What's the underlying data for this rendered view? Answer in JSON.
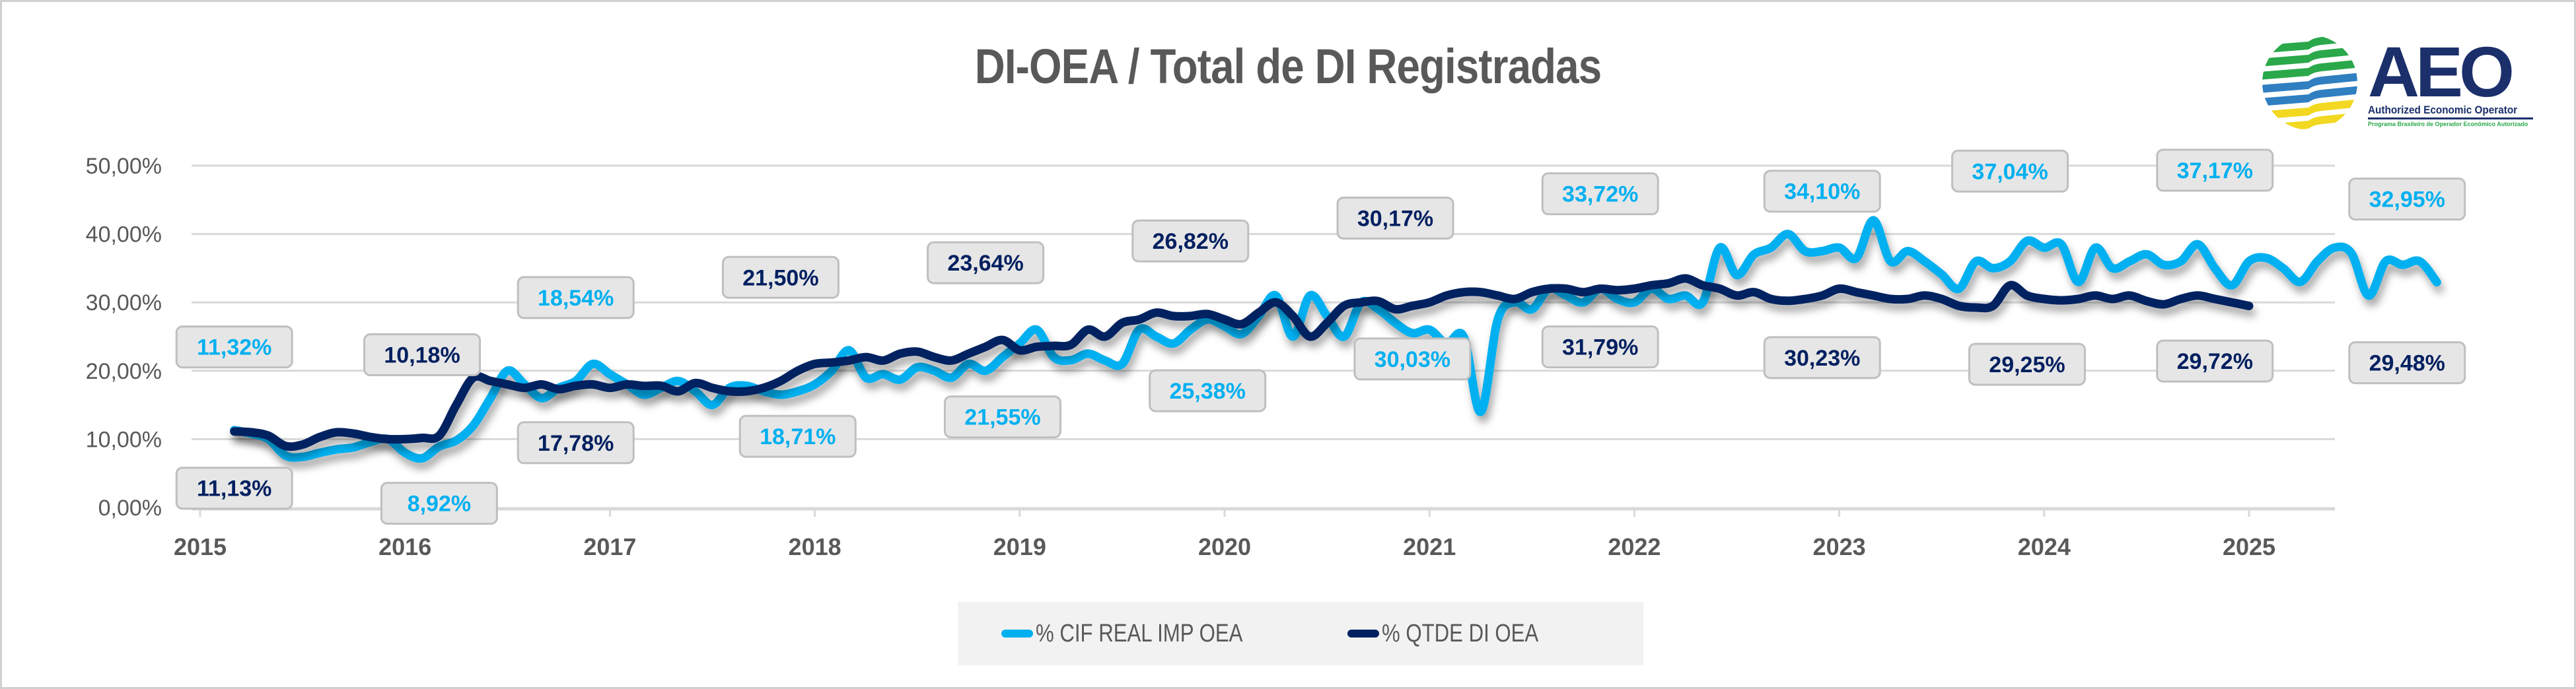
{
  "title": "DI-OEA / Total de DI Registradas",
  "logo": {
    "main_text": "AEO",
    "subtitle": "Authorized Economic Operator",
    "tagline": "Programa Brasileiro de Operador Econômico Autorizado",
    "stripe_colors": [
      "#2aa84a",
      "#2aa84a",
      "#2aa84a",
      "#2f7fc1",
      "#2f7fc1",
      "#f2d820",
      "#f2d820"
    ]
  },
  "colors": {
    "cif": "#00b0f0",
    "qtde": "#002060",
    "grid": "#d9d9d9",
    "label_bg": "#e7e6e6",
    "label_border": "#bfbfbf",
    "axis_text": "#595959"
  },
  "chart_data": {
    "type": "line",
    "title": "DI-OEA / Total de DI Registradas",
    "xlabel": "",
    "ylabel": "",
    "ylim": [
      0,
      50
    ],
    "y_ticks": [
      "0,00%",
      "10,00%",
      "20,00%",
      "30,00%",
      "40,00%",
      "50,00%"
    ],
    "y_tick_values": [
      0,
      10,
      20,
      30,
      40,
      50
    ],
    "x_ticks": [
      "2015",
      "2016",
      "2017",
      "2018",
      "2019",
      "2020",
      "2021",
      "2022",
      "2023",
      "2024",
      "2025"
    ],
    "x_start": "2015-03",
    "x_step": "month",
    "grid": true,
    "legend_position": "bottom",
    "series": [
      {
        "name": "% CIF REAL IMP OEA",
        "color": "#00b0f0",
        "values": [
          11.32,
          10.8,
          10.0,
          7.6,
          7.4,
          8.0,
          8.5,
          8.8,
          9.6,
          10.0,
          8.0,
          7.2,
          8.92,
          9.8,
          12.0,
          16.0,
          20.0,
          18.0,
          16.0,
          17.5,
          18.5,
          21.0,
          19.5,
          18.0,
          16.5,
          17.5,
          18.5,
          17.0,
          15.0,
          17.5,
          17.8,
          17.0,
          16.5,
          17.0,
          18.0,
          20.0,
          23.0,
          19.0,
          19.5,
          18.71,
          20.5,
          20.0,
          19.0,
          21.0,
          20.0,
          22.0,
          24.0,
          26.0,
          22.0,
          21.55,
          22.5,
          21.5,
          21.0,
          26.0,
          25.0,
          24.0,
          26.0,
          27.5,
          26.5,
          25.38,
          28.0,
          31.0,
          25.0,
          31.0,
          28.0,
          25.0,
          30.0,
          29.0,
          27.0,
          25.5,
          26.0,
          24.0,
          25.0,
          14.0,
          27.5,
          30.03,
          29.0,
          32.0,
          31.0,
          30.0,
          32.0,
          30.5,
          30.0,
          32.0,
          30.5,
          31.0,
          30.0,
          38.0,
          34.0,
          37.0,
          38.0,
          40.0,
          37.5,
          37.5,
          38.0,
          36.5,
          42.0,
          36.0,
          37.5,
          36.0,
          34.1,
          32.0,
          36.0,
          35.0,
          36.0,
          39.0,
          38.0,
          38.5,
          33.0,
          38.0,
          35.0,
          36.0,
          37.04,
          35.5,
          36.0,
          38.5,
          35.0,
          32.5,
          36.0,
          36.5,
          35.0,
          33.0,
          36.0,
          38.0,
          37.17,
          31.0,
          36.0,
          35.5,
          36.0,
          32.95
        ]
      },
      {
        "name": "% QTDE DI OEA",
        "color": "#002060",
        "values": [
          11.13,
          11.0,
          10.5,
          9.0,
          9.2,
          10.3,
          11.0,
          10.8,
          10.3,
          10.0,
          10.0,
          10.18,
          10.5,
          15.0,
          19.0,
          18.5,
          18.0,
          17.5,
          18.0,
          17.3,
          17.8,
          18.0,
          17.5,
          18.0,
          17.78,
          17.8,
          17.0,
          18.2,
          17.5,
          17.0,
          17.0,
          17.5,
          18.5,
          20.0,
          21.0,
          21.2,
          21.5,
          22.0,
          21.5,
          22.5,
          22.8,
          22.0,
          21.5,
          22.5,
          23.5,
          24.5,
          23.0,
          23.5,
          23.64,
          23.8,
          26.0,
          25.0,
          27.0,
          27.5,
          28.5,
          28.0,
          28.0,
          28.3,
          27.5,
          26.82,
          28.5,
          30.0,
          28.0,
          25.0,
          27.0,
          29.5,
          30.0,
          30.17,
          29.0,
          29.5,
          30.0,
          31.0,
          31.5,
          31.5,
          31.0,
          30.5,
          31.5,
          32.0,
          32.0,
          31.5,
          32.0,
          31.79,
          32.0,
          32.5,
          32.8,
          33.5,
          32.5,
          32.0,
          31.0,
          31.5,
          30.5,
          30.23,
          30.5,
          31.0,
          32.0,
          31.5,
          31.0,
          30.5,
          30.5,
          31.0,
          30.5,
          29.5,
          29.25,
          29.5,
          32.5,
          31.0,
          30.5,
          30.3,
          30.5,
          31.0,
          30.5,
          31.0,
          30.2,
          29.72,
          30.5,
          31.0,
          30.5,
          30.0,
          29.48
        ]
      }
    ],
    "data_labels": [
      {
        "series": 0,
        "text": "11,32%",
        "x": "2015-03",
        "value": 11.32,
        "position": "above"
      },
      {
        "series": 1,
        "text": "11,13%",
        "x": "2015-03",
        "value": 11.13,
        "position": "below"
      },
      {
        "series": 1,
        "text": "10,18%",
        "x": "2016-02",
        "value": 10.18,
        "position": "above"
      },
      {
        "series": 0,
        "text": "8,92%",
        "x": "2016-03",
        "value": 8.92,
        "position": "below"
      },
      {
        "series": 0,
        "text": "18,54%",
        "x": "2016-11",
        "value": 18.54,
        "position": "above"
      },
      {
        "series": 1,
        "text": "17,78%",
        "x": "2016-11",
        "value": 17.78,
        "position": "below"
      },
      {
        "series": 1,
        "text": "21,50%",
        "x": "2017-11",
        "value": 21.5,
        "position": "above"
      },
      {
        "series": 0,
        "text": "18,71%",
        "x": "2017-12",
        "value": 18.71,
        "position": "below"
      },
      {
        "series": 1,
        "text": "23,64%",
        "x": "2018-11",
        "value": 23.64,
        "position": "above"
      },
      {
        "series": 0,
        "text": "21,55%",
        "x": "2018-12",
        "value": 21.55,
        "position": "below"
      },
      {
        "series": 1,
        "text": "26,82%",
        "x": "2019-11",
        "value": 26.82,
        "position": "above"
      },
      {
        "series": 0,
        "text": "25,38%",
        "x": "2019-12",
        "value": 25.38,
        "position": "below"
      },
      {
        "series": 1,
        "text": "30,17%",
        "x": "2020-11",
        "value": 30.17,
        "position": "above"
      },
      {
        "series": 0,
        "text": "30,03%",
        "x": "2020-12",
        "value": 30.03,
        "position": "below"
      },
      {
        "series": 0,
        "text": "33,72%",
        "x": "2021-11",
        "value": 33.72,
        "position": "above"
      },
      {
        "series": 1,
        "text": "31,79%",
        "x": "2021-11",
        "value": 31.79,
        "position": "below"
      },
      {
        "series": 0,
        "text": "34,10%",
        "x": "2022-12",
        "value": 34.1,
        "position": "above"
      },
      {
        "series": 1,
        "text": "30,23%",
        "x": "2022-12",
        "value": 30.23,
        "position": "below"
      },
      {
        "series": 0,
        "text": "37,04%",
        "x": "2023-11",
        "value": 37.04,
        "position": "above"
      },
      {
        "series": 1,
        "text": "29,25%",
        "x": "2023-12",
        "value": 29.25,
        "position": "below"
      },
      {
        "series": 0,
        "text": "37,17%",
        "x": "2024-11",
        "value": 37.17,
        "position": "above"
      },
      {
        "series": 1,
        "text": "29,72%",
        "x": "2024-11",
        "value": 29.72,
        "position": "below"
      },
      {
        "series": 0,
        "text": "32,95%",
        "x": "2025-06",
        "value": 32.95,
        "position": "above-right"
      },
      {
        "series": 1,
        "text": "29,48%",
        "x": "2025-06",
        "value": 29.48,
        "position": "below-right"
      }
    ]
  },
  "legend": {
    "items": [
      {
        "label": "% CIF REAL IMP OEA",
        "color": "#00b0f0"
      },
      {
        "label": "% QTDE DI OEA",
        "color": "#002060"
      }
    ]
  }
}
